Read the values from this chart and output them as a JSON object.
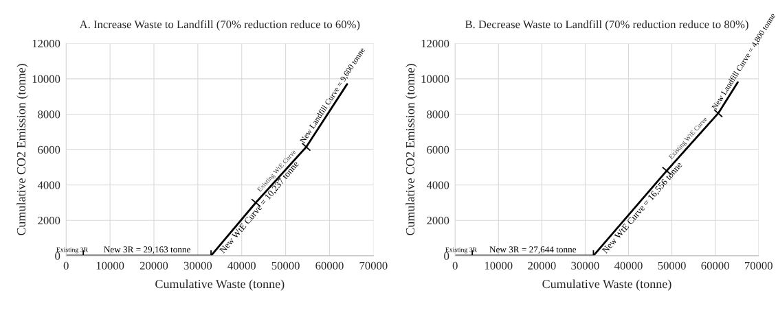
{
  "chart_data": [
    {
      "type": "line",
      "title": "A. Increase Waste to Landfill (70% reduction reduce to 60%)",
      "xlabel": "Cumulative Waste (tonne)",
      "ylabel": "Cumulative CO2 Emission (tonne)",
      "x": [
        0,
        3900,
        33000,
        43200,
        54700,
        64000
      ],
      "series": [
        {
          "color": "#000000",
          "values": [
            0,
            0,
            0,
            3000,
            6150,
            9700
          ]
        }
      ],
      "xlim": [
        0,
        70000
      ],
      "xticks": [
        0,
        10000,
        20000,
        30000,
        40000,
        50000,
        60000,
        70000
      ],
      "ylim": [
        0,
        12000
      ],
      "yticks": [
        0,
        2000,
        4000,
        6000,
        8000,
        10000,
        12000
      ],
      "grid": true,
      "annotations": [
        "Existing 3R",
        "New 3R = 29,163 tonne",
        "New WtE Curve = 10,237 tonne",
        "Existing WtE Curve",
        "New Landfill Curve = 9,600 tonne"
      ]
    },
    {
      "type": "line",
      "title": "B. Decrease Waste to Landfill (70% reduction reduce to 80%)",
      "xlabel": "Cumulative Waste (tonne)",
      "ylabel": "Cumulative CO2 Emission (tonne)",
      "x": [
        0,
        3950,
        31900,
        48800,
        60700,
        65200
      ],
      "series": [
        {
          "color": "#000000",
          "values": [
            0,
            0,
            0,
            4800,
            8050,
            9800
          ]
        }
      ],
      "xlim": [
        0,
        70000
      ],
      "xticks": [
        0,
        10000,
        20000,
        30000,
        40000,
        50000,
        60000,
        70000
      ],
      "ylim": [
        0,
        12000
      ],
      "yticks": [
        0,
        2000,
        4000,
        6000,
        8000,
        10000,
        12000
      ],
      "grid": true,
      "annotations": [
        "Existing 3R",
        "New 3R = 27,644 tonne",
        "New WtE Curve = 16,556 tonne",
        "Existing WtE Curve",
        "New Landfill Curve = 4,800 tonne"
      ]
    }
  ]
}
